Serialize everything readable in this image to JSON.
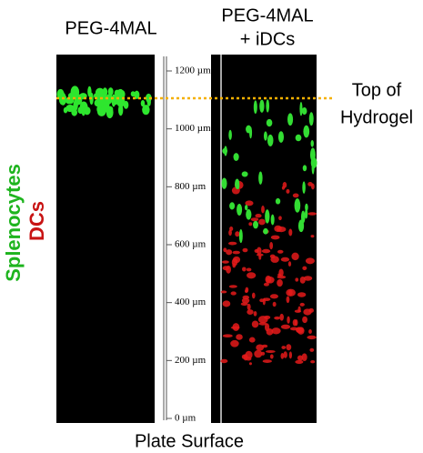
{
  "panels": [
    {
      "title": [
        "PEG-4MAL"
      ]
    },
    {
      "title": [
        "PEG-4MAL",
        "+ iDCs"
      ]
    }
  ],
  "scale": {
    "ticks": [
      "1200 µm",
      "1000 µm",
      "800 µm",
      "600 µm",
      "400 µm",
      "200 µm",
      "0 µm"
    ]
  },
  "annotation": [
    "Top of",
    "Hydrogel"
  ],
  "channels": [
    "Splenocytes",
    "DCs"
  ],
  "footer": "Plate Surface"
}
